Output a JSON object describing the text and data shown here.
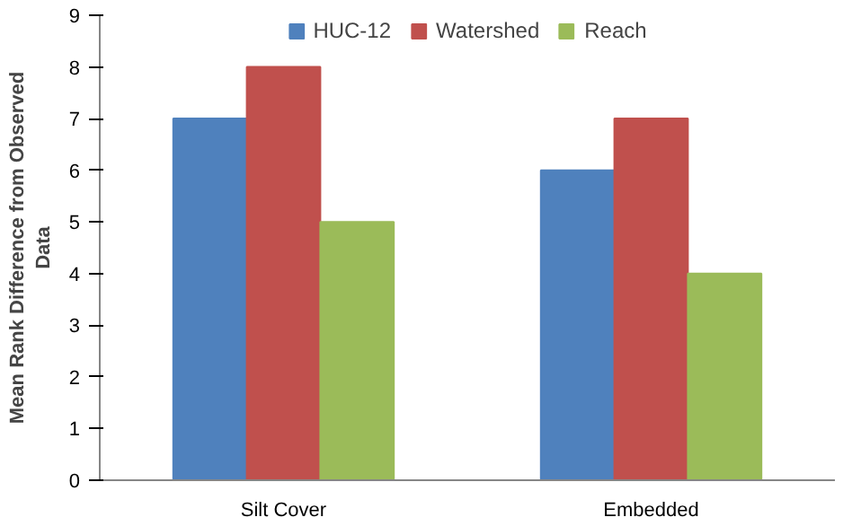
{
  "chart_data": {
    "type": "bar",
    "ylabel": "Mean Rank Difference from Observed Data",
    "categories": [
      "Silt Cover",
      "Embedded"
    ],
    "series": [
      {
        "name": "HUC-12",
        "color": "#4f81bd",
        "values": [
          7,
          6
        ]
      },
      {
        "name": "Watershed",
        "color": "#c0504d",
        "values": [
          8,
          7
        ]
      },
      {
        "name": "Reach",
        "color": "#9bbb59",
        "values": [
          5,
          4
        ]
      }
    ],
    "ylim": [
      0,
      9
    ],
    "yticks": [
      0,
      1,
      2,
      3,
      4,
      5,
      6,
      7,
      8,
      9
    ],
    "grid": false,
    "legend": "top"
  }
}
